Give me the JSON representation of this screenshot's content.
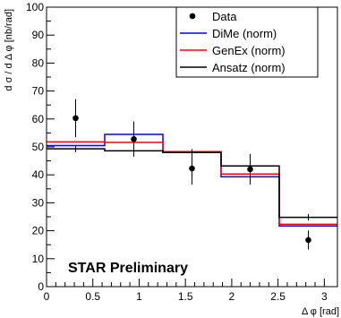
{
  "chart_data": {
    "type": "line",
    "title": "",
    "xlabel": "Δ φ [rad]",
    "ylabel": "d σ / d Δ φ [nb/rad]",
    "xlim": [
      0,
      3.1416
    ],
    "ylim": [
      0,
      100
    ],
    "x_ticks": [
      0,
      0.5,
      1,
      1.5,
      2,
      2.5,
      3
    ],
    "x_tick_labels": [
      "0",
      "0.5",
      "1",
      "1.5",
      "2",
      "2.5",
      "3"
    ],
    "y_ticks": [
      0,
      10,
      20,
      30,
      40,
      50,
      60,
      70,
      80,
      90,
      100
    ],
    "y_tick_labels": [
      "0",
      "10",
      "20",
      "30",
      "40",
      "50",
      "60",
      "70",
      "80",
      "90",
      "100"
    ],
    "bin_edges": [
      0,
      0.6283,
      1.2566,
      1.885,
      2.5133,
      3.1416
    ],
    "grid": false,
    "legend_position": "top-right",
    "annotation": "STAR Preliminary",
    "series": [
      {
        "name": "Data",
        "kind": "points",
        "color": "#000000",
        "x": [
          0.3142,
          0.9425,
          1.5708,
          2.1991,
          2.8274
        ],
        "y": [
          60.3,
          52.8,
          42.3,
          42.0,
          16.7
        ],
        "err": [
          6.8,
          6.3,
          5.8,
          5.5,
          3.4
        ]
      },
      {
        "name": "DiMe  (norm)",
        "kind": "step",
        "color": "#0000ff",
        "values": [
          50.5,
          54.5,
          48.0,
          39.3,
          21.7
        ]
      },
      {
        "name": "GenEx  (norm)",
        "kind": "step",
        "color": "#ff0000",
        "values": [
          51.8,
          51.6,
          48.3,
          40.3,
          22.3
        ]
      },
      {
        "name": "Ansatz  (norm)",
        "kind": "step",
        "color": "#000000",
        "values": [
          49.3,
          48.6,
          48.0,
          43.2,
          24.8
        ],
        "err": [
          1.2,
          1.2,
          1.2,
          1.2,
          1.2
        ]
      }
    ]
  }
}
